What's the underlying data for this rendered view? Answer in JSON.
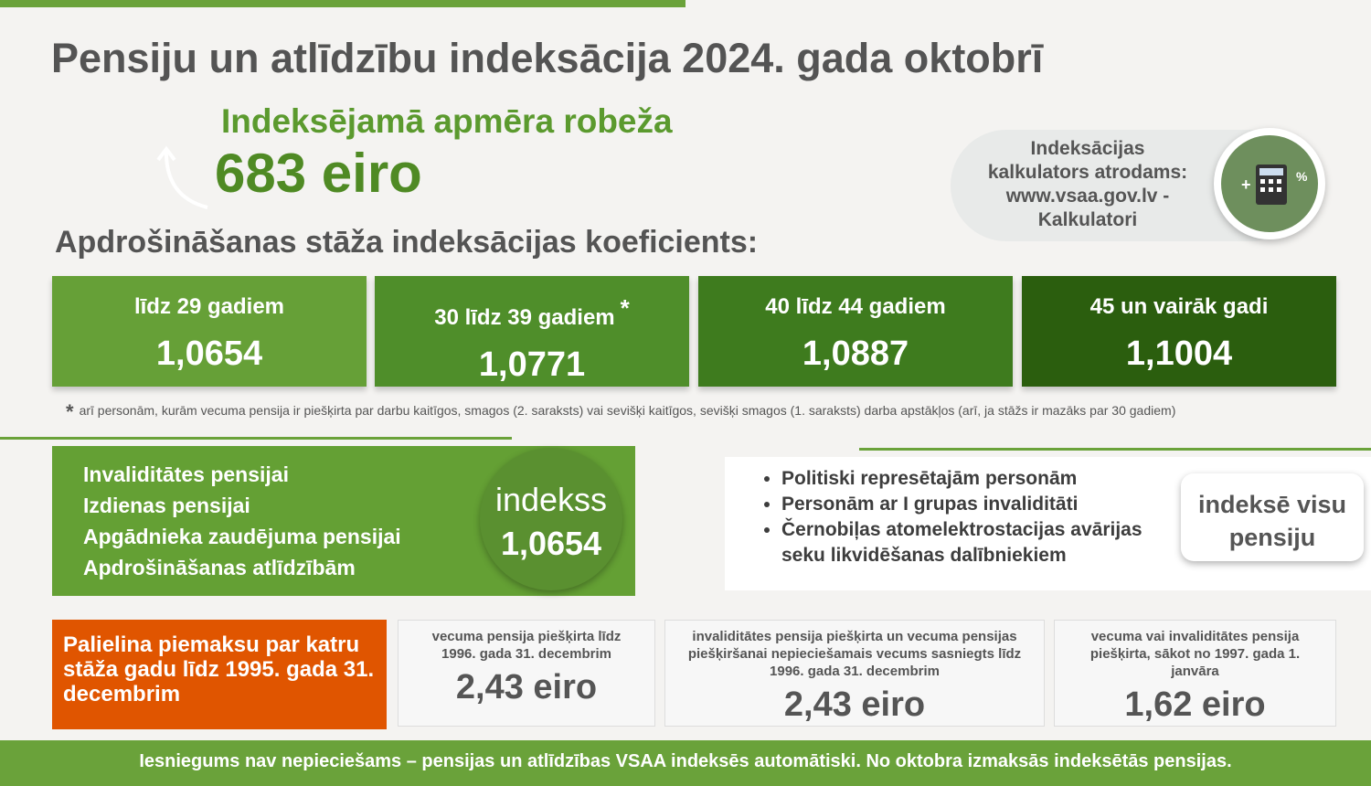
{
  "title": "Pensiju un atlīdzību indeksācija 2024. gada oktobrī",
  "threshold": {
    "label": "Indeksējamā apmēra robeža",
    "value": "683 eiro"
  },
  "calculator": {
    "lines": [
      "Indeksācijas",
      "kalkulators atrodams:",
      "www.vsaa.gov.lv -",
      "Kalkulatori"
    ]
  },
  "coefficients": {
    "heading": "Apdrošināšanas stāža indeksācijas koeficients:",
    "items": [
      {
        "label": "līdz 29 gadiem",
        "value": "1,0654"
      },
      {
        "label": "30 līdz 39 gadiem",
        "note_mark": "*",
        "value": "1,0771"
      },
      {
        "label": "40 līdz 44 gadiem",
        "value": "1,0887"
      },
      {
        "label": "45 un vairāk gadi",
        "value": "1,1004"
      }
    ],
    "footnote": {
      "mark": "*",
      "text": "arī personām, kurām vecuma pensija ir piešķirta par darbu kaitīgos, smagos (2. saraksts) vai sevišķi kaitīgos, sevišķi smagos (1. saraksts) darba apstākļos (arī, ja stāžs ir mazāks par 30 gadiem)"
    }
  },
  "index_box": {
    "items": [
      "Invaliditātes pensijai",
      "Izdienas pensijai",
      "Apgādnieka zaudējuma pensijai",
      "Apdrošināšanas atlīdzībām"
    ],
    "badge_label": "indekss",
    "badge_value": "1,0654"
  },
  "full_index": {
    "items": [
      "Politiski represētajām personām",
      "Personām ar I grupas invaliditāti",
      "Černobiļas atomelektrostacijas avārijas seku likvidēšanas dalībniekiem"
    ],
    "button": "indeksē visu pensiju"
  },
  "supplement": {
    "heading": "Palielina piemaksu par katru stāža gadu līdz 1995. gada 31. decembrim",
    "cards": [
      {
        "condition": "vecuma pensija piešķirta līdz 1996. gada 31. decembrim",
        "amount": "2,43 eiro"
      },
      {
        "condition": "invaliditātes pensija piešķirta un vecuma pensijas piešķiršanai nepieciešamais vecums sasniegts līdz 1996. gada 31. decembrim",
        "amount": "2,43 eiro"
      },
      {
        "condition": "vecuma vai invaliditātes pensija piešķirta, sākot no 1997. gada 1. janvāra",
        "amount": "1,62 eiro"
      }
    ]
  },
  "footer": "Iesniegums nav nepieciešams – pensijas un atlīdzības VSAA indeksēs automātiski. No oktobra izmaksās indeksētās pensijas."
}
